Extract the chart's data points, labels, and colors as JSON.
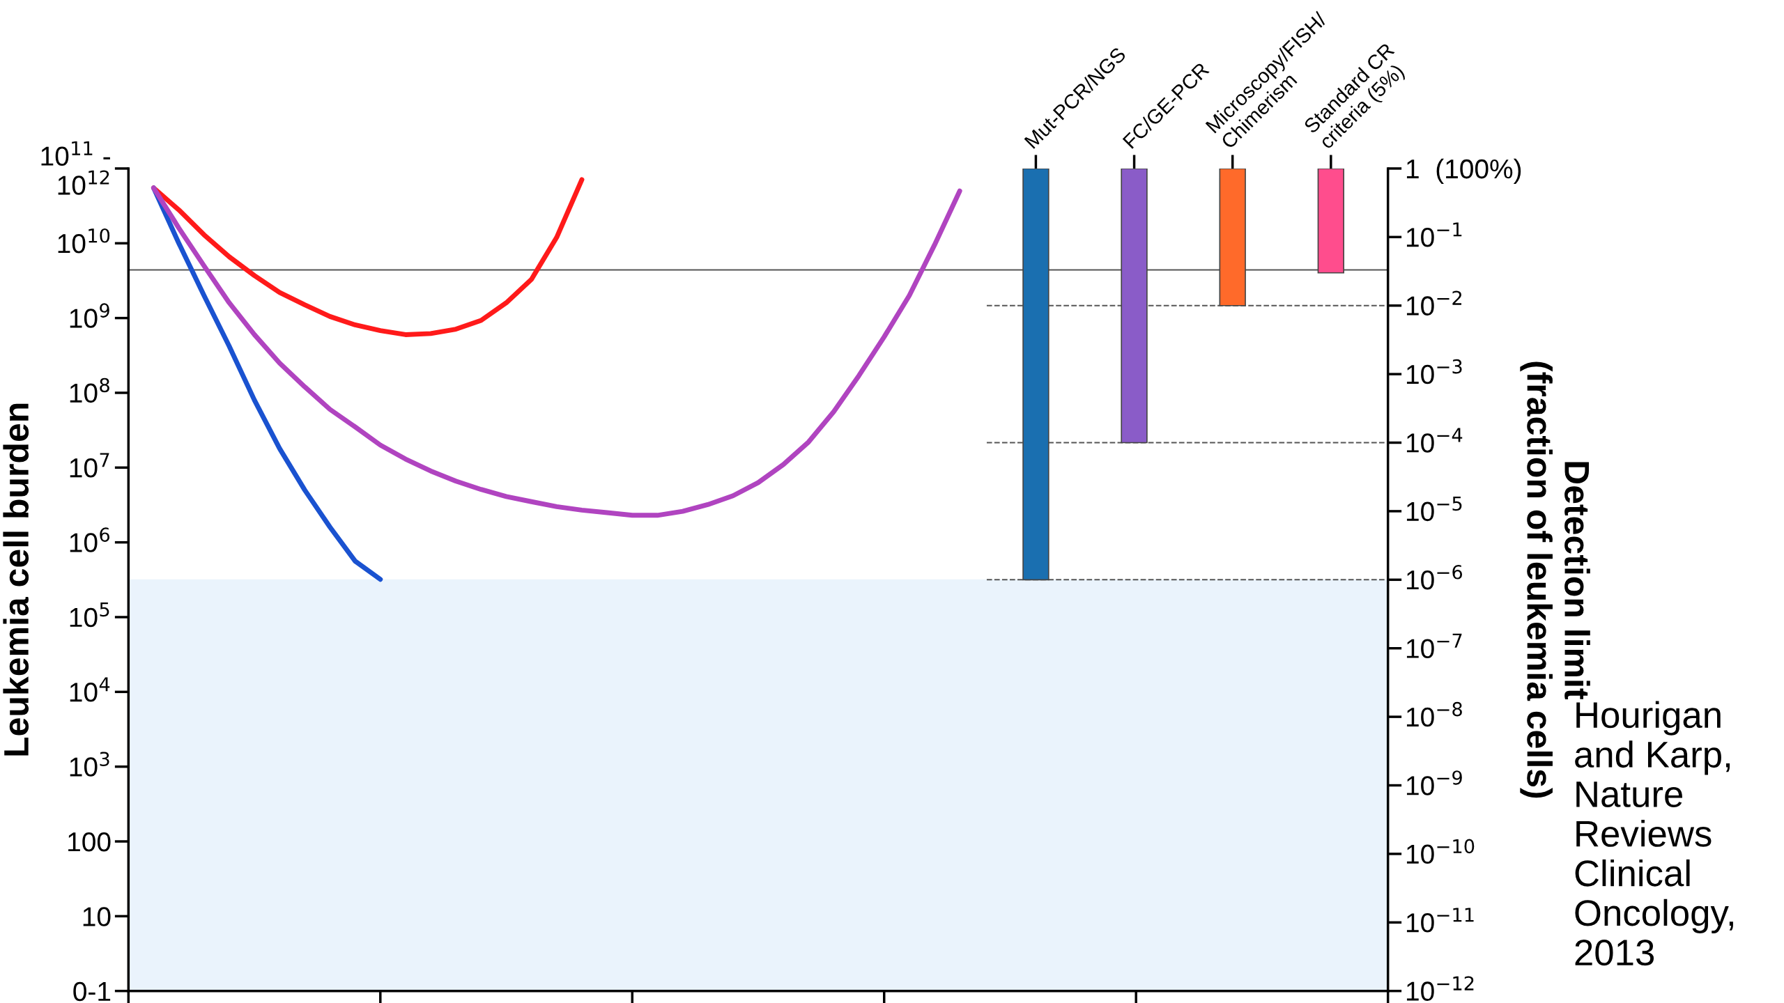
{
  "chart_data": [
    {
      "type": "line",
      "ylabel": "Leukemia cell burden",
      "categories": [
        null,
        null,
        null,
        null,
        null,
        null,
        null,
        null,
        null,
        null,
        null,
        null,
        null,
        null,
        null,
        null,
        null,
        null,
        null,
        null,
        null,
        null,
        null,
        null,
        null,
        null,
        null,
        null,
        null,
        null,
        null,
        null,
        null,
        null,
        null,
        null,
        null,
        null,
        null,
        null,
        null,
        null,
        null,
        null,
        null,
        null,
        null,
        null,
        null,
        null,
        null
      ],
      "log": "y",
      "ylim": [
        1,
        100000000000
      ],
      "yticks": [
        {
          "value": 1,
          "label": "0-1"
        },
        {
          "value": 10,
          "label": "10"
        },
        {
          "value": 100,
          "label": "100"
        },
        {
          "value": 1000,
          "label": "10$^{3}$"
        },
        {
          "value": 10000,
          "label": "10$^{4}$"
        },
        {
          "value": 100000,
          "label": "10$^{5}$"
        },
        {
          "value": 1000000,
          "label": "10$^{6}$"
        },
        {
          "value": 10000000,
          "label": "10$^{7}$"
        },
        {
          "value": 100000000,
          "label": "10$^{8}$"
        },
        {
          "value": 1000000000,
          "label": "10$^{9}$"
        },
        {
          "value": 10000000000,
          "label": "10$^{10}$"
        },
        {
          "value": 100000000000,
          "label": "10$^{11}$ -\n10$^{12}$"
        }
      ],
      "tick_labels": "y",
      "grid": false,
      "series": [
        {
          "color": "#ff1a1a",
          "values": [
            null,
            55000000000.0,
            28000000000.0,
            13000000000.0,
            6600000000.0,
            3700000000.0,
            2200000000.0,
            1500000000.0,
            1050000000.0,
            810000000.0,
            680000000.0,
            600000000.0,
            620000000.0,
            710000000.0,
            930000000.0,
            1600000000.0,
            3300000000.0,
            12000000000.0,
            71000000000.0,
            null,
            null,
            null,
            null,
            null,
            null,
            null,
            null,
            null,
            null,
            null,
            null,
            null,
            null,
            null,
            null,
            null,
            null,
            null,
            null,
            null,
            null,
            null,
            null,
            null,
            null,
            null,
            null,
            null,
            null,
            null,
            null
          ]
        },
        {
          "color": "#1a52d0",
          "values": [
            null,
            55000000000.0,
            10000000000.0,
            2000000000.0,
            420000000.0,
            80000000.0,
            18000000.0,
            5000000.0,
            1600000.0,
            560000.0,
            320000.0,
            null,
            null,
            null,
            null,
            null,
            null,
            null,
            null,
            null,
            null,
            null,
            null,
            null,
            null,
            null,
            null,
            null,
            null,
            null,
            null,
            null,
            null,
            null,
            null,
            null,
            null,
            null,
            null,
            null,
            null,
            null,
            null,
            null,
            null,
            null,
            null,
            null,
            null,
            null,
            null
          ]
        },
        {
          "color": "#b044c0",
          "values": [
            null,
            55000000000.0,
            16000000000.0,
            5000000000.0,
            1600000000.0,
            600000000.0,
            250000000.0,
            120000000.0,
            60000000.0,
            35000000.0,
            20000000.0,
            13000000.0,
            9000000.0,
            6600000.0,
            5100000.0,
            4100000.0,
            3500000.0,
            3000000.0,
            2700000.0,
            2500000.0,
            2300000.0,
            2300000.0,
            2600000.0,
            3200000.0,
            4200000.0,
            6300000.0,
            11000000.0,
            22000000.0,
            56000000.0,
            170000000.0,
            560000000.0,
            2000000000.0,
            9500000000.0,
            50000000000.0,
            null,
            null,
            null,
            null,
            null,
            null,
            null,
            null,
            null,
            null,
            null,
            null,
            null,
            null,
            null,
            null,
            null
          ]
        }
      ],
      "ref_lines": [
        {
          "axis": "y",
          "value": 4400000000,
          "color": "#555555",
          "line_style": "solid"
        }
      ],
      "bands": [
        {
          "axis": "y",
          "from": 1,
          "to": 320000,
          "color": "#eaf3fc"
        }
      ],
      "annotations": [
        "Hourigan and Karp, Nature Reviews Clinical Oncology, 2013"
      ]
    },
    {
      "type": "bar",
      "ylabel": "Detection limit\n(fraction of leukemia cells)",
      "categories": [
        "Mut-PCR/NGS",
        "FC/GE-PCR",
        "Microscopy/FISH/\nChimerism",
        "Standard CR\ncriteria (5%)"
      ],
      "log": "y",
      "ylim": [
        1e-12,
        1
      ],
      "yticks": [
        {
          "value": 1e-12,
          "label": "10$^{−12}$"
        },
        {
          "value": 1e-11,
          "label": "10$^{−11}$"
        },
        {
          "value": 1e-10,
          "label": "10$^{−10}$"
        },
        {
          "value": 1e-09,
          "label": "10$^{−9}$"
        },
        {
          "value": 1e-08,
          "label": "10$^{−8}$"
        },
        {
          "value": 1e-07,
          "label": "10$^{−7}$"
        },
        {
          "value": 1e-06,
          "label": "10$^{−6}$"
        },
        {
          "value": 1e-05,
          "label": "10$^{−5}$"
        },
        {
          "value": 0.0001,
          "label": "10$^{−4}$"
        },
        {
          "value": 0.001,
          "label": "10$^{−3}$"
        },
        {
          "value": 0.01,
          "label": "10$^{−2}$"
        },
        {
          "value": 0.1,
          "label": "10$^{−1}$"
        },
        {
          "value": 1,
          "label": "1  (100%)"
        }
      ],
      "grid": false,
      "ref_lines": [
        {
          "axis": "y",
          "value": 1e-06,
          "color": "#555555",
          "line_style": "dashed"
        },
        {
          "axis": "y",
          "value": 0.0001,
          "color": "#555555",
          "line_style": "dashed"
        },
        {
          "axis": "y",
          "value": 0.01,
          "color": "#555555",
          "line_style": "dashed"
        }
      ],
      "base": [
        1e-06,
        0.0001,
        0.01,
        0.03
      ],
      "values": [
        0.999999,
        0.9999,
        0.99,
        0.97
      ],
      "colors": [
        "#1a6fb0",
        "#8a5cc8",
        "#ff6a2a",
        "#ff4d8d"
      ]
    }
  ]
}
